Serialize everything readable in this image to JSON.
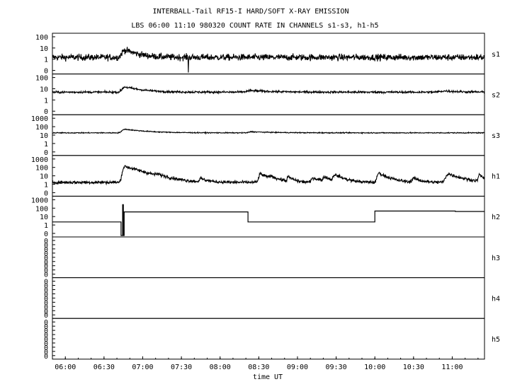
{
  "chart_data": {
    "type": "line",
    "title": "INTERBALL-Tail RF15-I HARD/SOFT X-RAY EMISSION",
    "subtitle": "LBS 06:00 11:10 980320  COUNT RATE IN CHANNELS s1-s3, h1-h5",
    "xlabel": "time UT",
    "x_unit": "hours UT",
    "xlim": [
      5.833,
      11.417
    ],
    "x_ticks": [
      {
        "x": 6.0,
        "label": "06:00"
      },
      {
        "x": 6.5,
        "label": "06:30"
      },
      {
        "x": 7.0,
        "label": "07:00"
      },
      {
        "x": 7.5,
        "label": "07:30"
      },
      {
        "x": 8.0,
        "label": "08:00"
      },
      {
        "x": 8.5,
        "label": "08:30"
      },
      {
        "x": 9.0,
        "label": "09:00"
      },
      {
        "x": 9.5,
        "label": "09:30"
      },
      {
        "x": 10.0,
        "label": "10:00"
      },
      {
        "x": 10.5,
        "label": "10:30"
      },
      {
        "x": 11.0,
        "label": "11:00"
      }
    ],
    "grid": false,
    "y_scale": "log",
    "panels": [
      {
        "name": "s1",
        "y_ticks": [
          "100",
          "10",
          "1",
          "0"
        ],
        "ylim": [
          0.3,
          200
        ],
        "kind": "noisy",
        "noise": 0.18,
        "base": 4.5,
        "peaks": [
          [
            6.77,
            12,
            0.06,
            0.15
          ]
        ],
        "drops": [
          [
            7.59,
            0.3
          ]
        ]
      },
      {
        "name": "s2",
        "y_ticks": [
          "100",
          "10",
          "1",
          "0"
        ],
        "ylim": [
          0.3,
          200
        ],
        "kind": "noisy",
        "noise": 0.06,
        "base": 13,
        "peaks": [
          [
            6.77,
            20,
            0.06,
            0.2
          ],
          [
            8.4,
            4,
            0.1,
            0.3
          ],
          [
            10.9,
            3,
            0.1,
            0.2
          ]
        ],
        "drops": []
      },
      {
        "name": "s3",
        "y_ticks": [
          "1000",
          "100",
          "10",
          "1",
          "0"
        ],
        "ylim": [
          0.3,
          2000
        ],
        "kind": "noisy",
        "noise": 0.035,
        "base": 50,
        "peaks": [
          [
            6.77,
            70,
            0.06,
            0.25
          ],
          [
            8.4,
            15,
            0.05,
            0.3
          ]
        ],
        "drops": []
      },
      {
        "name": "h1",
        "y_ticks": [
          "1000",
          "100",
          "10",
          "1",
          "0"
        ],
        "ylim": [
          0.3,
          2000
        ],
        "kind": "noisy",
        "noise": 0.12,
        "base": 6,
        "peaks": [
          [
            6.77,
            280,
            0.04,
            0.18
          ],
          [
            7.2,
            12,
            0.05,
            0.1
          ],
          [
            7.75,
            8,
            0.03,
            0.08
          ],
          [
            8.52,
            40,
            0.03,
            0.1
          ],
          [
            8.65,
            12,
            0.03,
            0.1
          ],
          [
            8.88,
            15,
            0.02,
            0.06
          ],
          [
            9.2,
            12,
            0.03,
            0.1
          ],
          [
            9.35,
            15,
            0.03,
            0.08
          ],
          [
            9.48,
            30,
            0.03,
            0.1
          ],
          [
            10.05,
            50,
            0.03,
            0.1
          ],
          [
            10.5,
            10,
            0.03,
            0.08
          ],
          [
            10.95,
            40,
            0.05,
            0.14
          ],
          [
            11.35,
            30,
            0.02,
            0.05
          ]
        ],
        "drops": []
      },
      {
        "name": "h2",
        "y_ticks": [
          "1000",
          "100",
          "10",
          "1",
          "0"
        ],
        "ylim": [
          0.3,
          2000
        ],
        "kind": "steps",
        "steps": [
          [
            5.833,
            8
          ],
          [
            6.72,
            0.3
          ],
          [
            6.74,
            520
          ],
          [
            6.75,
            0.3
          ],
          [
            6.76,
            90
          ],
          [
            8.36,
            8
          ],
          [
            10.0,
            110
          ],
          [
            11.04,
            100
          ],
          [
            11.417,
            100
          ]
        ]
      },
      {
        "name": "h3",
        "y_ticks": [
          "0",
          "0",
          "0",
          "0",
          "0",
          "0",
          "0",
          "0",
          "0"
        ],
        "kind": "empty"
      },
      {
        "name": "h4",
        "y_ticks": [
          "0",
          "0",
          "0",
          "0",
          "0",
          "0",
          "0",
          "0",
          "0"
        ],
        "kind": "empty"
      },
      {
        "name": "h5",
        "y_ticks": [
          "0",
          "0",
          "0",
          "0",
          "0",
          "0",
          "0",
          "0",
          "0"
        ],
        "kind": "empty"
      }
    ]
  }
}
